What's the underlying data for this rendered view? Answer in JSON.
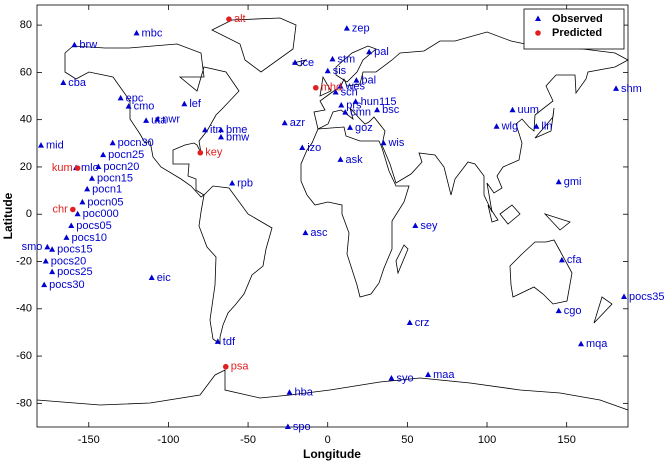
{
  "chart_data": {
    "type": "scatter",
    "x_label": "Longitude",
    "y_label": "Latitude",
    "xlim": [
      -182.5,
      188.5
    ],
    "ylim": [
      -90,
      88.5
    ],
    "xticks": [
      -150,
      -100,
      -50,
      0,
      50,
      100,
      150
    ],
    "yticks": [
      -80,
      -60,
      -40,
      -20,
      0,
      20,
      40,
      60,
      80
    ],
    "grid": false,
    "legend": "northeast",
    "series": [
      {
        "name": "Observed",
        "color": "#0000d0",
        "marker": "triangle",
        "labels": [
          "zep",
          "brw",
          "mbc",
          "pal",
          "stm",
          "ice",
          "cba",
          "sis",
          "bal",
          "wes",
          "epc",
          "cmo",
          "lef",
          "hun115",
          "sch",
          "prs",
          "cmn",
          "bsc",
          "shm",
          "uum",
          "lln",
          "wlg",
          "mid",
          "pocn30",
          "pocn25",
          "pocn20",
          "mlo",
          "pocn15",
          "pocn1",
          "pocn05",
          "poc000",
          "pocs05",
          "pocs10",
          "smo",
          "pocs15",
          "pocs20",
          "pocs25",
          "pocs30",
          "ask",
          "rpb",
          "bmw",
          "bme",
          "itn",
          "nwr",
          "uta",
          "azr",
          "izo",
          "goz",
          "wis",
          "gmi",
          "sey",
          "asc",
          "cfa",
          "eic",
          "cgo",
          "pocs35",
          "crz",
          "tdf",
          "mqa",
          "syo",
          "maa",
          "hba",
          "spo"
        ],
        "x": [
          12,
          -159,
          -120,
          26,
          3,
          -20.5,
          -166,
          0,
          18,
          8,
          -130,
          -125,
          -90,
          17.5,
          5,
          8.5,
          11,
          31,
          181,
          116,
          131,
          106,
          -180,
          -135,
          -141,
          -144,
          -158,
          -148,
          -151,
          -154,
          -157,
          -161,
          -164,
          -176,
          -173,
          -177,
          -173,
          -178,
          8,
          -60,
          -67,
          -67,
          -77,
          -107,
          -114,
          -27,
          -16,
          14,
          35,
          145,
          55,
          -14,
          147,
          -110.5,
          145,
          186,
          51.5,
          -69,
          159,
          40,
          63,
          -24,
          -25
        ],
        "y": [
          78.5,
          71.5,
          76.5,
          68.5,
          65.5,
          64,
          55.5,
          60.5,
          56.5,
          54,
          49,
          45.5,
          46.5,
          47.5,
          51.5,
          46,
          43,
          44,
          53,
          44,
          37,
          37,
          29,
          30,
          25,
          20,
          19.5,
          15,
          10.5,
          5,
          0,
          -5,
          -10,
          -14,
          -15,
          -20,
          -24.5,
          -30,
          23,
          13,
          32.5,
          35.5,
          35.5,
          40,
          39.5,
          38.5,
          28,
          36.5,
          30,
          13.5,
          -5,
          -8,
          -19.5,
          -27,
          -41,
          -35,
          -46,
          -54,
          -55,
          -69.5,
          -68,
          -75.5,
          -90
        ]
      },
      {
        "name": "Predicted",
        "color": "#e02020",
        "marker": "circle",
        "labels": [
          "alt",
          "mhd",
          "kum",
          "key",
          "chr",
          "psa"
        ],
        "x": [
          -62,
          -7.5,
          -157,
          -80,
          -160,
          -64
        ],
        "y": [
          82.5,
          53.5,
          19.5,
          26,
          2,
          -64.5
        ]
      }
    ]
  }
}
